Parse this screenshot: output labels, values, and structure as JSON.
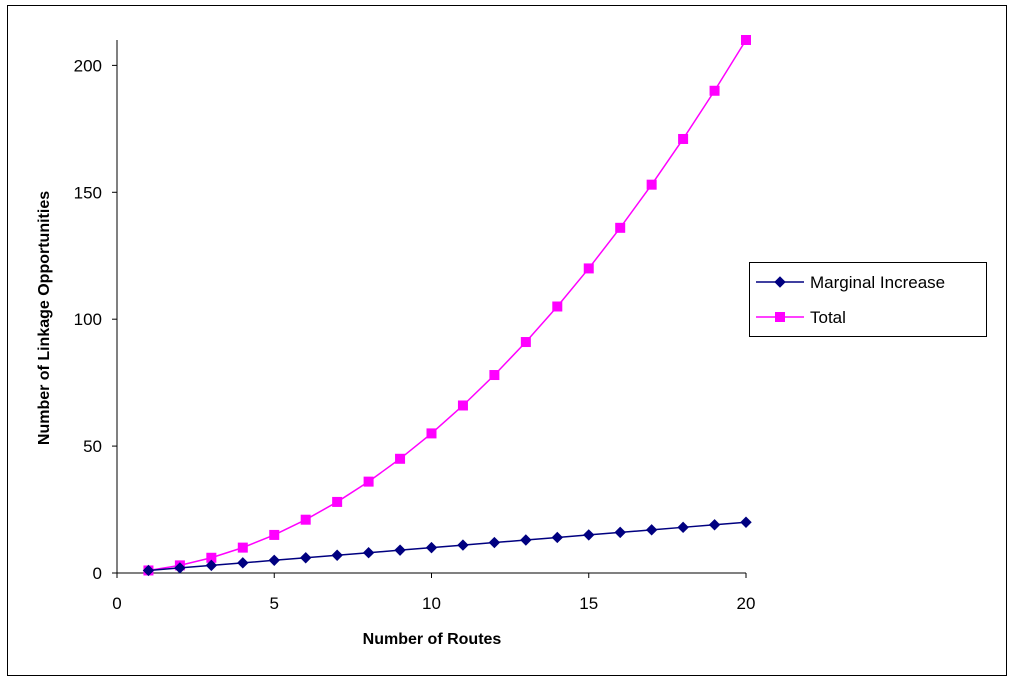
{
  "chart_data": {
    "type": "line",
    "title": "",
    "xlabel": "Number of Routes",
    "ylabel": "Number of Linkage Opportunities",
    "xlim": [
      0,
      20
    ],
    "ylim": [
      0,
      210
    ],
    "x_ticks": [
      0,
      5,
      10,
      15,
      20
    ],
    "y_ticks": [
      0,
      50,
      100,
      150,
      200
    ],
    "grid": false,
    "legend_position": "right",
    "x": [
      1,
      2,
      3,
      4,
      5,
      6,
      7,
      8,
      9,
      10,
      11,
      12,
      13,
      14,
      15,
      16,
      17,
      18,
      19,
      20
    ],
    "series": [
      {
        "name": "Marginal Increase",
        "marker": "diamond",
        "color": "#000080",
        "values": [
          1,
          2,
          3,
          4,
          5,
          6,
          7,
          8,
          9,
          10,
          11,
          12,
          13,
          14,
          15,
          16,
          17,
          18,
          19,
          20
        ]
      },
      {
        "name": "Total",
        "marker": "square",
        "color": "#FF00FF",
        "values": [
          1,
          3,
          6,
          10,
          15,
          21,
          28,
          36,
          45,
          55,
          66,
          78,
          91,
          105,
          120,
          136,
          153,
          171,
          190,
          210
        ]
      }
    ]
  }
}
